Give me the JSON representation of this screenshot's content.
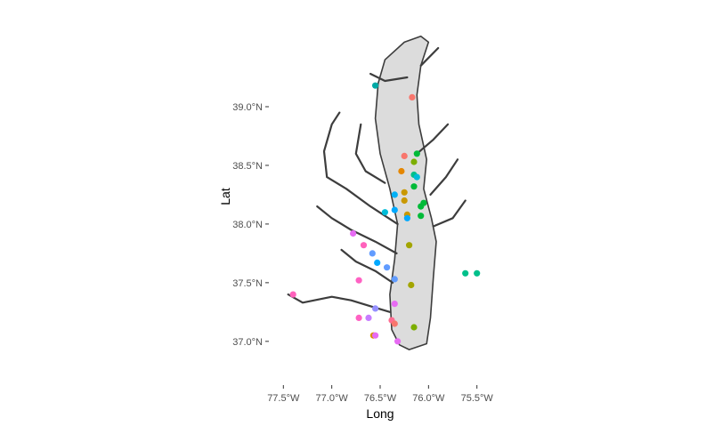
{
  "chart_data": {
    "type": "scatter",
    "title": "",
    "xlabel": "Long",
    "ylabel": "Lat",
    "xlim": [
      -77.65,
      -75.35
    ],
    "ylim": [
      36.65,
      39.72
    ],
    "x_ticks": [
      {
        "value": -77.5,
        "label": "77.5°W"
      },
      {
        "value": -77.0,
        "label": "77.0°W"
      },
      {
        "value": -76.5,
        "label": "76.5°W"
      },
      {
        "value": -76.0,
        "label": "76.0°W"
      },
      {
        "value": -75.5,
        "label": "75.5°W"
      }
    ],
    "y_ticks": [
      {
        "value": 37.0,
        "label": "37.0°N"
      },
      {
        "value": 37.5,
        "label": "37.5°N"
      },
      {
        "value": 38.0,
        "label": "38.0°N"
      },
      {
        "value": 38.5,
        "label": "38.5°N"
      },
      {
        "value": 39.0,
        "label": "39.0°N"
      }
    ],
    "grid": false,
    "legend": "none",
    "colors": {
      "land_outline": "#3d3d3d",
      "water_fill": "#dcdcdc",
      "tick_text": "#4d4d4d"
    },
    "basemap": {
      "description": "Chesapeake Bay shoreline",
      "bay": [
        [
          -76.08,
          39.6
        ],
        [
          -76.0,
          39.55
        ],
        [
          -76.08,
          39.35
        ],
        [
          -76.12,
          39.1
        ],
        [
          -76.1,
          38.85
        ],
        [
          -76.02,
          38.55
        ],
        [
          -76.05,
          38.3
        ],
        [
          -75.97,
          38.05
        ],
        [
          -75.92,
          37.85
        ],
        [
          -75.95,
          37.55
        ],
        [
          -75.98,
          37.2
        ],
        [
          -76.02,
          36.98
        ],
        [
          -76.2,
          36.93
        ],
        [
          -76.3,
          36.97
        ],
        [
          -76.38,
          37.1
        ],
        [
          -76.4,
          37.4
        ],
        [
          -76.35,
          37.7
        ],
        [
          -76.32,
          38.0
        ],
        [
          -76.4,
          38.3
        ],
        [
          -76.5,
          38.6
        ],
        [
          -76.55,
          38.9
        ],
        [
          -76.52,
          39.2
        ],
        [
          -76.45,
          39.4
        ],
        [
          -76.25,
          39.55
        ],
        [
          -76.08,
          39.6
        ]
      ],
      "rivers": [
        [
          [
            -76.32,
            38.0
          ],
          [
            -76.6,
            38.15
          ],
          [
            -76.85,
            38.3
          ],
          [
            -77.05,
            38.4
          ],
          [
            -77.08,
            38.62
          ],
          [
            -77.0,
            38.85
          ],
          [
            -76.92,
            38.95
          ]
        ],
        [
          [
            -76.33,
            37.75
          ],
          [
            -76.55,
            37.85
          ],
          [
            -76.8,
            37.95
          ],
          [
            -77.0,
            38.05
          ],
          [
            -77.15,
            38.15
          ]
        ],
        [
          [
            -76.37,
            37.5
          ],
          [
            -76.55,
            37.6
          ],
          [
            -76.75,
            37.68
          ],
          [
            -76.9,
            37.78
          ]
        ],
        [
          [
            -76.4,
            37.25
          ],
          [
            -76.6,
            37.3
          ],
          [
            -76.8,
            37.35
          ],
          [
            -77.0,
            37.38
          ],
          [
            -77.3,
            37.33
          ],
          [
            -77.45,
            37.4
          ]
        ],
        [
          [
            -76.45,
            38.35
          ],
          [
            -76.65,
            38.45
          ],
          [
            -76.75,
            38.6
          ],
          [
            -76.7,
            38.85
          ]
        ],
        [
          [
            -76.22,
            39.25
          ],
          [
            -76.45,
            39.22
          ],
          [
            -76.6,
            39.28
          ]
        ],
        [
          [
            -76.12,
            38.6
          ],
          [
            -75.95,
            38.72
          ],
          [
            -75.8,
            38.85
          ]
        ],
        [
          [
            -75.98,
            38.25
          ],
          [
            -75.82,
            38.4
          ],
          [
            -75.7,
            38.55
          ]
        ],
        [
          [
            -75.95,
            37.98
          ],
          [
            -75.75,
            38.05
          ],
          [
            -75.62,
            38.2
          ]
        ],
        [
          [
            -76.08,
            39.35
          ],
          [
            -75.9,
            39.5
          ]
        ]
      ]
    },
    "points": [
      {
        "lon": -76.55,
        "lat": 39.18,
        "color": "#00A9A5"
      },
      {
        "lon": -76.17,
        "lat": 39.08,
        "color": "#F8766D"
      },
      {
        "lon": -76.25,
        "lat": 38.58,
        "color": "#F8766D"
      },
      {
        "lon": -76.12,
        "lat": 38.6,
        "color": "#00BA38"
      },
      {
        "lon": -76.15,
        "lat": 38.53,
        "color": "#7CAE00"
      },
      {
        "lon": -76.28,
        "lat": 38.45,
        "color": "#E58700"
      },
      {
        "lon": -76.15,
        "lat": 38.42,
        "color": "#00C08B"
      },
      {
        "lon": -76.12,
        "lat": 38.4,
        "color": "#00BCD8"
      },
      {
        "lon": -76.15,
        "lat": 38.32,
        "color": "#00BA38"
      },
      {
        "lon": -76.25,
        "lat": 38.27,
        "color": "#C99800"
      },
      {
        "lon": -76.35,
        "lat": 38.25,
        "color": "#00B0F6"
      },
      {
        "lon": -76.05,
        "lat": 38.18,
        "color": "#00BA38"
      },
      {
        "lon": -76.25,
        "lat": 38.2,
        "color": "#C99800"
      },
      {
        "lon": -76.08,
        "lat": 38.15,
        "color": "#00BA38"
      },
      {
        "lon": -76.35,
        "lat": 38.12,
        "color": "#00A9FF"
      },
      {
        "lon": -76.45,
        "lat": 38.1,
        "color": "#00BCD8"
      },
      {
        "lon": -76.22,
        "lat": 38.08,
        "color": "#C99800"
      },
      {
        "lon": -76.08,
        "lat": 38.07,
        "color": "#00BA38"
      },
      {
        "lon": -76.22,
        "lat": 38.05,
        "color": "#00A9FF"
      },
      {
        "lon": -76.78,
        "lat": 37.92,
        "color": "#E76BF3"
      },
      {
        "lon": -76.2,
        "lat": 37.82,
        "color": "#A3A500"
      },
      {
        "lon": -76.67,
        "lat": 37.82,
        "color": "#FF62BC"
      },
      {
        "lon": -76.58,
        "lat": 37.75,
        "color": "#619CFF"
      },
      {
        "lon": -76.53,
        "lat": 37.67,
        "color": "#00A9FF"
      },
      {
        "lon": -76.43,
        "lat": 37.63,
        "color": "#619CFF"
      },
      {
        "lon": -75.62,
        "lat": 37.58,
        "color": "#00C08B"
      },
      {
        "lon": -75.5,
        "lat": 37.58,
        "color": "#00C08B"
      },
      {
        "lon": -76.35,
        "lat": 37.53,
        "color": "#619CFF"
      },
      {
        "lon": -76.72,
        "lat": 37.52,
        "color": "#FF61C3"
      },
      {
        "lon": -76.18,
        "lat": 37.48,
        "color": "#A3A500"
      },
      {
        "lon": -77.4,
        "lat": 37.4,
        "color": "#FF62BC"
      },
      {
        "lon": -76.35,
        "lat": 37.32,
        "color": "#E76BF3"
      },
      {
        "lon": -76.55,
        "lat": 37.28,
        "color": "#9590FF"
      },
      {
        "lon": -76.72,
        "lat": 37.2,
        "color": "#FF61C3"
      },
      {
        "lon": -76.62,
        "lat": 37.2,
        "color": "#C77CFF"
      },
      {
        "lon": -76.38,
        "lat": 37.18,
        "color": "#FF6C91"
      },
      {
        "lon": -76.35,
        "lat": 37.15,
        "color": "#F8766D"
      },
      {
        "lon": -76.15,
        "lat": 37.12,
        "color": "#7CAE00"
      },
      {
        "lon": -76.57,
        "lat": 37.05,
        "color": "#D89000"
      },
      {
        "lon": -76.55,
        "lat": 37.05,
        "color": "#E76BF3"
      },
      {
        "lon": -76.32,
        "lat": 37.0,
        "color": "#E76BF3"
      }
    ]
  }
}
